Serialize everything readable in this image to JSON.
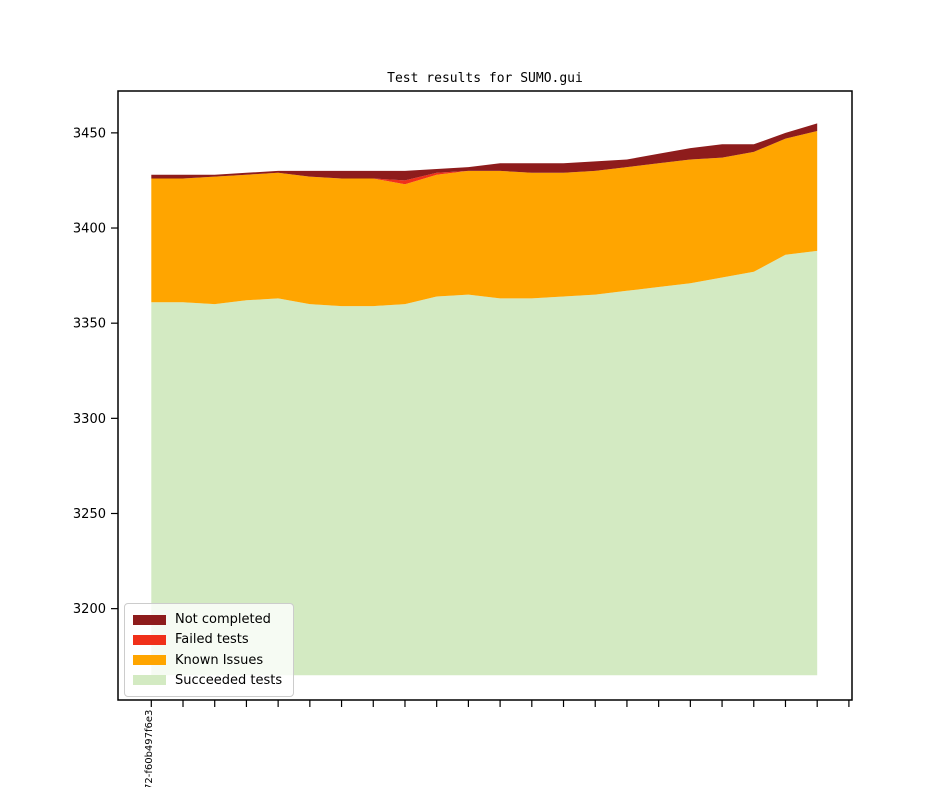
{
  "figure": {
    "title": "Test results for SUMO.gui",
    "background": "#ffffff"
  },
  "axes": {
    "axis_color": "#000000",
    "y_tick_labels": [
      "3450",
      "3400",
      "3350",
      "3300",
      "3250",
      "3200"
    ],
    "x_tick_count": 23,
    "x_first_tick_label": "72-f60b497f6e3"
  },
  "legend": {
    "items": [
      {
        "label": "Not completed",
        "color": "#8e1c1c"
      },
      {
        "label": "Failed tests",
        "color": "#f0301a"
      },
      {
        "label": "Known Issues",
        "color": "#ffa500"
      },
      {
        "label": "Succeeded tests",
        "color": "#d3eac2"
      }
    ]
  },
  "chart_data": {
    "type": "area",
    "stacked": true,
    "title": "Test results for SUMO.gui",
    "xlabel": "",
    "ylabel": "",
    "x": [
      0,
      1,
      2,
      3,
      4,
      5,
      6,
      7,
      8,
      9,
      10,
      11,
      12,
      13,
      14,
      15,
      16,
      17,
      18,
      19,
      20,
      21
    ],
    "series": [
      {
        "name": "Succeeded tests",
        "color": "#d3eac2",
        "values": [
          3361,
          3361,
          3360,
          3362,
          3363,
          3360,
          3359,
          3359,
          3360,
          3364,
          3365,
          3363,
          3363,
          3364,
          3365,
          3367,
          3369,
          3371,
          3374,
          3377,
          3386,
          3388
        ]
      },
      {
        "name": "Known Issues",
        "color": "#ffa500",
        "values": [
          65,
          65,
          67,
          66,
          66,
          67,
          67,
          67,
          63,
          64,
          65,
          67,
          66,
          65,
          65,
          65,
          65,
          65,
          63,
          63,
          61,
          63
        ]
      },
      {
        "name": "Failed tests",
        "color": "#f0301a",
        "values": [
          0,
          0,
          0,
          0,
          0,
          0,
          0,
          0,
          2,
          1,
          0,
          0,
          0,
          0,
          0,
          0,
          0,
          0,
          0,
          0,
          0,
          0
        ]
      },
      {
        "name": "Not completed",
        "color": "#8e1c1c",
        "values": [
          2,
          2,
          1,
          1,
          1,
          3,
          4,
          4,
          5,
          2,
          2,
          4,
          5,
          5,
          5,
          4,
          5,
          6,
          7,
          4,
          3,
          4
        ]
      }
    ],
    "totals_top": [
      3428,
      3428,
      3428,
      3429,
      3430,
      3430,
      3430,
      3430,
      3430,
      3431,
      3432,
      3434,
      3434,
      3434,
      3435,
      3436,
      3439,
      3442,
      3444,
      3444,
      3450,
      3455
    ],
    "baseline": 3165,
    "ylim": [
      3152,
      3472
    ],
    "y_ticks": [
      3200,
      3250,
      3300,
      3350,
      3400,
      3450
    ],
    "grid": false,
    "legend_position": "lower left"
  }
}
